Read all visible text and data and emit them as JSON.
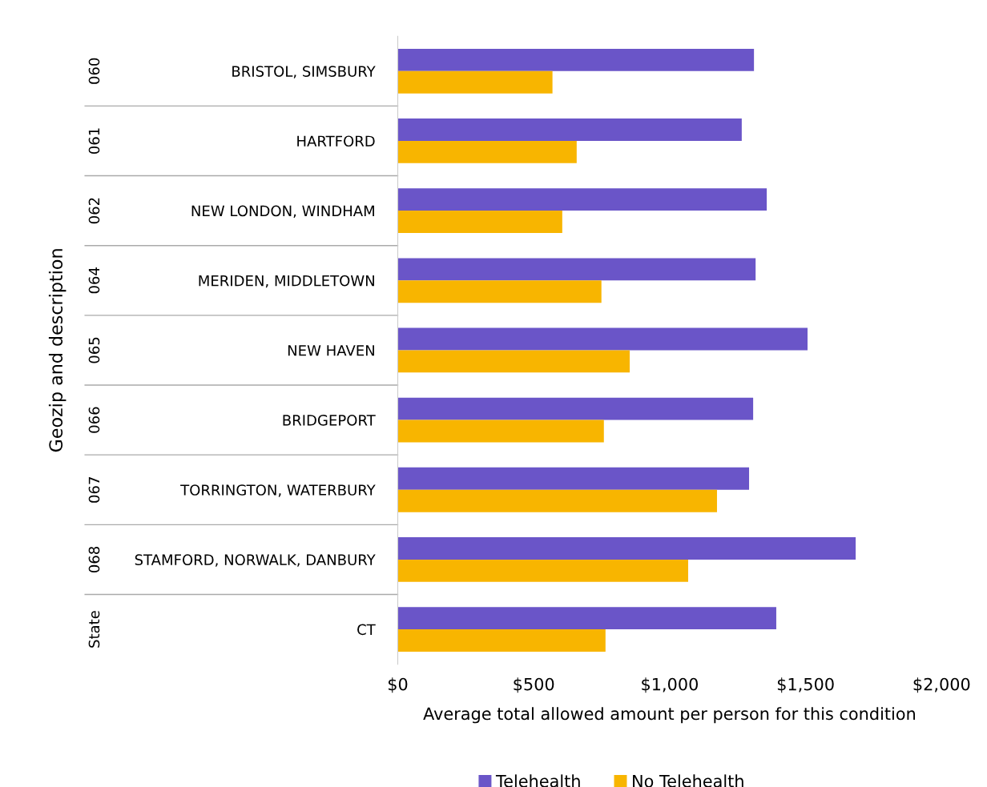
{
  "chart_data": {
    "type": "bar",
    "orientation": "horizontal",
    "categories": [
      "BRISTOL, SIMSBURY",
      "HARTFORD",
      "NEW LONDON, WINDHAM",
      "MERIDEN, MIDDLETOWN",
      "NEW HAVEN",
      "BRIDGEPORT",
      "TORRINGTON, WATERBURY",
      "STAMFORD, NORWALK, DANBURY",
      "CT"
    ],
    "series": [
      {
        "name": "Telehealth",
        "color": "#6a55c8",
        "values": [
          1310,
          1265,
          1357,
          1316,
          1507,
          1307,
          1292,
          1684,
          1392
        ]
      },
      {
        "name": "No Telehealth",
        "color": "#f8b500",
        "values": [
          569,
          658,
          605,
          749,
          853,
          758,
          1174,
          1068,
          764
        ]
      }
    ],
    "xlim": [
      0,
      2000
    ],
    "xticks": [
      {
        "value": 0,
        "label": "$0"
      },
      {
        "value": 500,
        "label": "$500"
      },
      {
        "value": 1000,
        "label": "$1,000"
      },
      {
        "value": 1500,
        "label": "$1,500"
      },
      {
        "value": 2000,
        "label": "$2,000"
      }
    ],
    "xlabel": "Average total allowed amount per person for this condition",
    "ylabel": "Geozip and description",
    "annotations": [
      "060",
      "061",
      "062",
      "064",
      "065",
      "066",
      "067",
      "068",
      "State"
    ],
    "legend": "bottom",
    "grid": false
  }
}
